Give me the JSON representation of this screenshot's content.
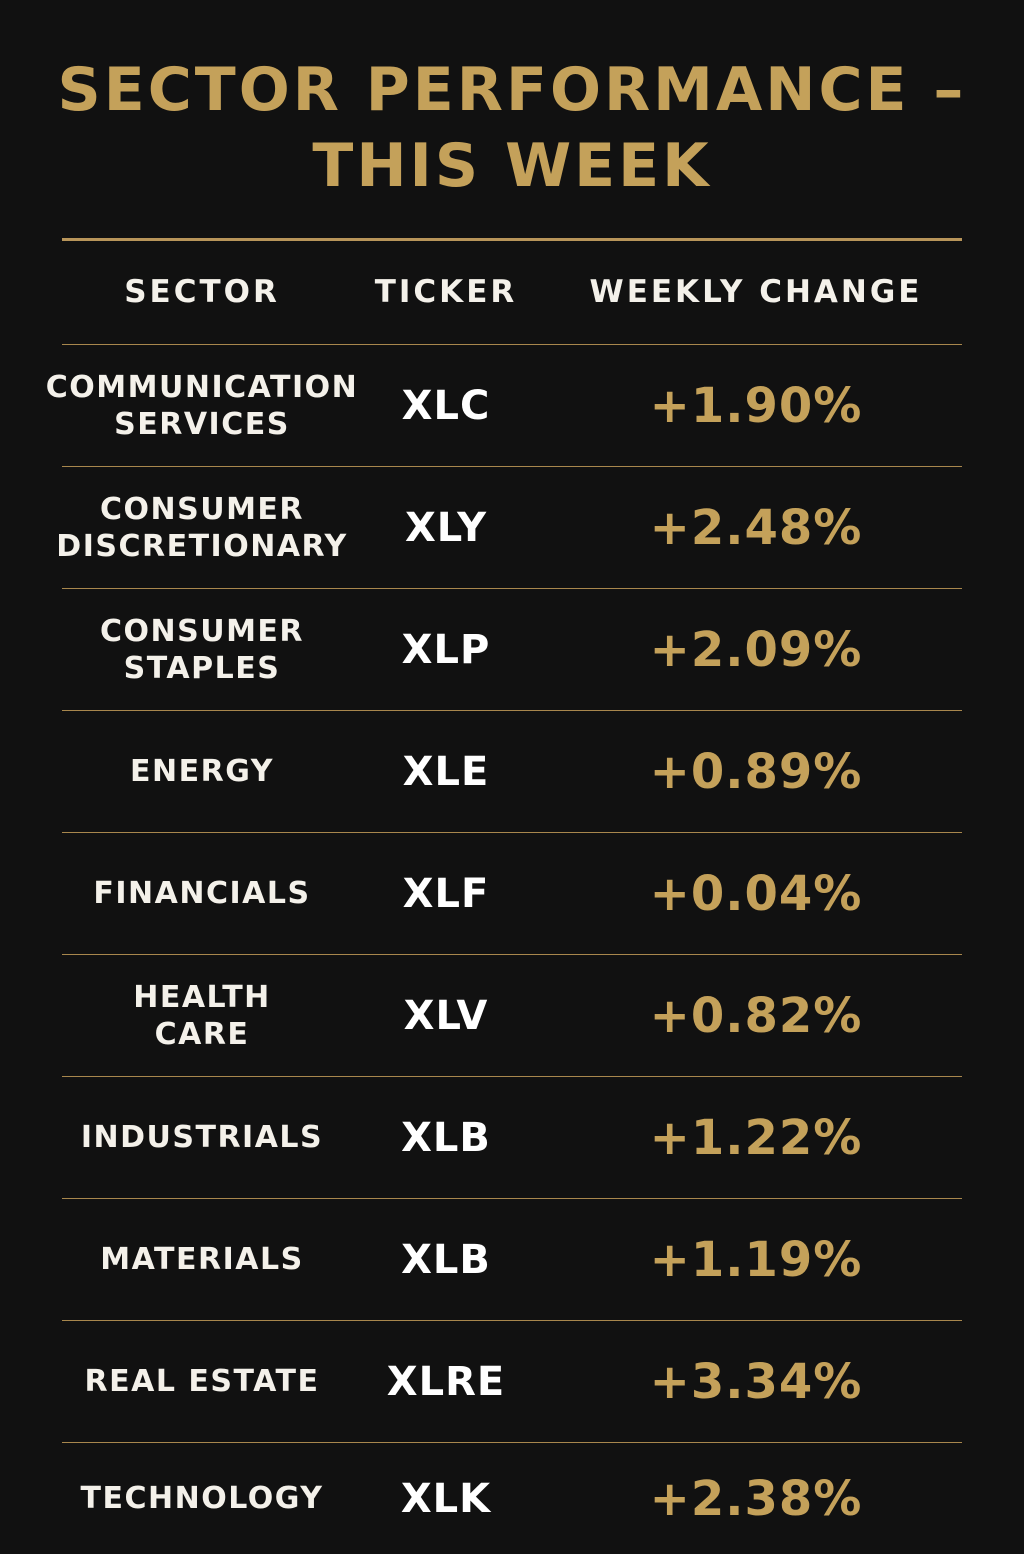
{
  "title": {
    "line1": "SECTOR PERFORMANCE –",
    "line2": "THIS WEEK"
  },
  "colors": {
    "background": "#111111",
    "accent_gold": "#c4a15a",
    "text": "#f4f1ea"
  },
  "table": {
    "headers": {
      "sector": "SECTOR",
      "ticker": "TICKER",
      "change": "WEEKLY CHANGE"
    },
    "rows": [
      {
        "sector": "COMMUNICATION\nSERVICES",
        "ticker": "XLC",
        "change": "+1.90%"
      },
      {
        "sector": "CONSUMER\nDISCRETIONARY",
        "ticker": "XLY",
        "change": "+2.48%"
      },
      {
        "sector": "CONSUMER\nSTAPLES",
        "ticker": "XLP",
        "change": "+2.09%"
      },
      {
        "sector": "ENERGY",
        "ticker": "XLE",
        "change": "+0.89%"
      },
      {
        "sector": "FINANCIALS",
        "ticker": "XLF",
        "change": "+0.04%"
      },
      {
        "sector": "HEALTH\nCARE",
        "ticker": "XLV",
        "change": "+0.82%"
      },
      {
        "sector": "INDUSTRIALS",
        "ticker": "XLB",
        "change": "+1.22%"
      },
      {
        "sector": "MATERIALS",
        "ticker": "XLB",
        "change": "+1.19%"
      },
      {
        "sector": "REAL ESTATE",
        "ticker": "XLRE",
        "change": "+3.34%"
      },
      {
        "sector": "TECHNOLOGY",
        "ticker": "XLK",
        "change": "+2.38%"
      }
    ]
  }
}
